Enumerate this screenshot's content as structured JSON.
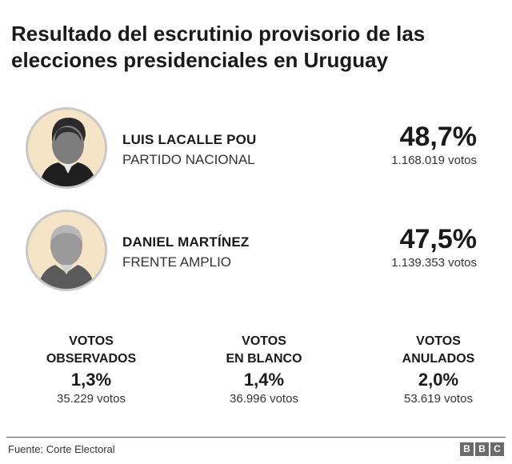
{
  "title": {
    "line1": "Resultado del escrutinio provisorio de las",
    "line2": "elecciones presidenciales en Uruguay"
  },
  "candidates": [
    {
      "name": "LUIS LACALLE POU",
      "party": "PARTIDO NACIONAL",
      "percent": "48,7%",
      "votes": "1.168.019 votos"
    },
    {
      "name": "DANIEL MARTÍNEZ",
      "party": "FRENTE AMPLIO",
      "percent": "47,5%",
      "votes": "1.139.353 votos"
    }
  ],
  "stats": [
    {
      "label_line1": "VOTOS",
      "label_line2": "OBSERVADOS",
      "percent": "1,3%",
      "votes": "35.229 votos"
    },
    {
      "label_line1": "VOTOS",
      "label_line2": "EN BLANCO",
      "percent": "1,4%",
      "votes": "36.996 votos"
    },
    {
      "label_line1": "VOTOS",
      "label_line2": "ANULADOS",
      "percent": "2,0%",
      "votes": "53.619 votos"
    }
  ],
  "footer": {
    "source": "Fuente: Corte Electoral",
    "logo": [
      "B",
      "B",
      "C"
    ]
  },
  "colors": {
    "avatar_bg": "#f6e4c6",
    "text": "#1a1a1a",
    "logo_bg": "#6b6b6b"
  }
}
